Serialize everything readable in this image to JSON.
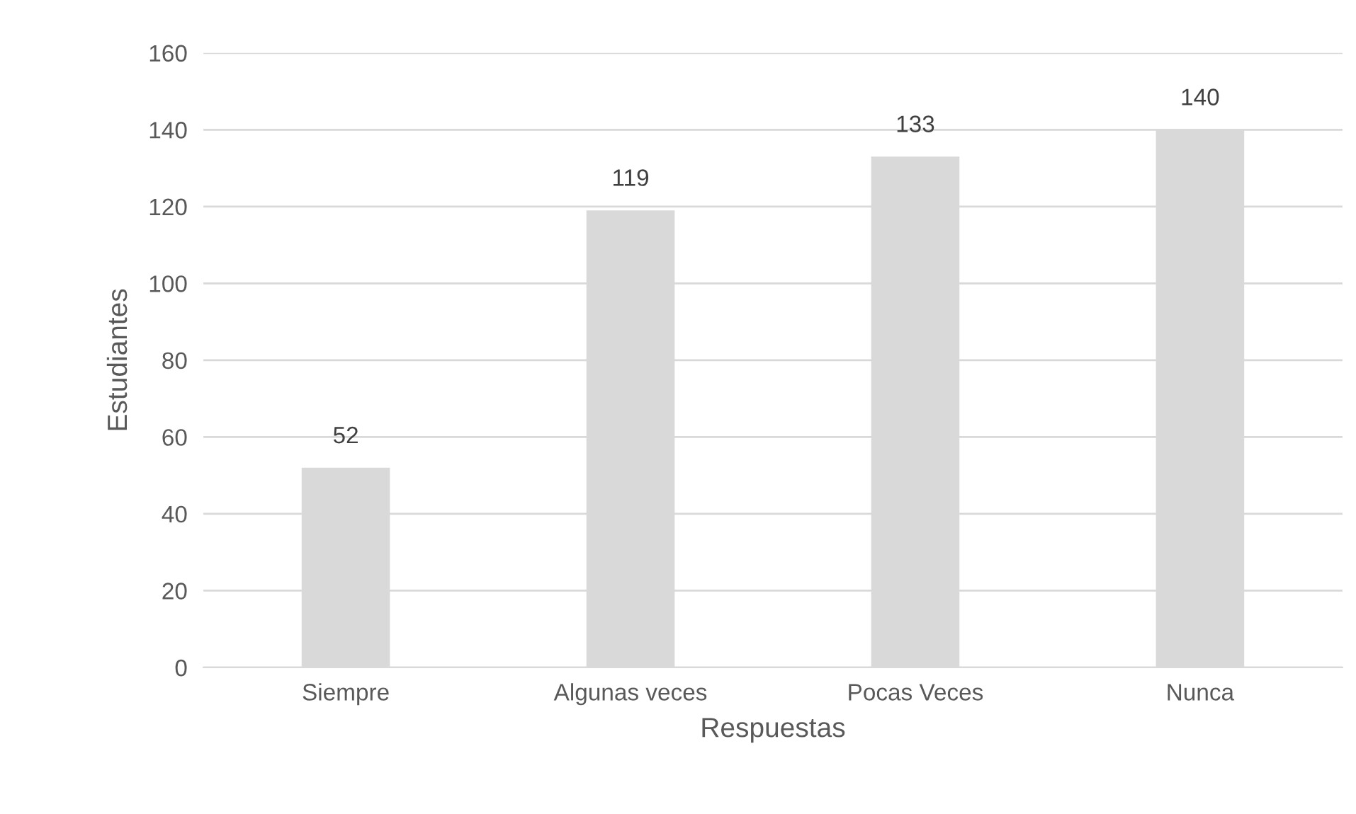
{
  "chart_data": {
    "type": "bar",
    "xlabel": "Respuestas",
    "ylabel": "Estudiantes",
    "categories": [
      "Siempre",
      "Algunas veces",
      "Pocas Veces",
      "Nunca"
    ],
    "values": [
      52,
      119,
      133,
      140
    ],
    "color": "#d9d9d9",
    "ylim": [
      0,
      160
    ],
    "yticks": [
      0,
      20,
      40,
      60,
      80,
      100,
      120,
      140,
      160
    ],
    "grid": "y",
    "data_labels": true,
    "legend": false
  }
}
